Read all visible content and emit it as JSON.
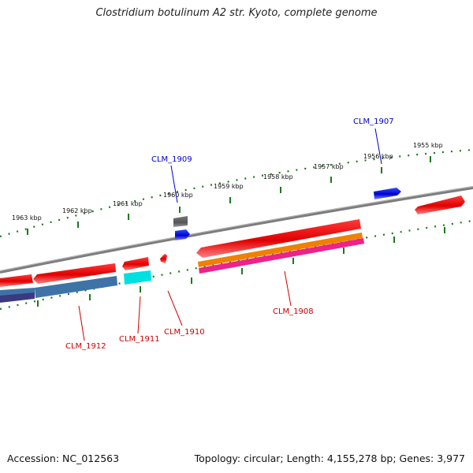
{
  "title": "Clostridium botulinum A2 str. Kyoto, complete genome",
  "footer": {
    "accession": "Accession: NC_012563",
    "summary": "Topology: circular; Length: 4,155,278 bp; Genes: 3,977"
  },
  "ticks": [
    "1963 kbp",
    "1962 kbp",
    "1961 kbp",
    "1960 kbp",
    "1959 kbp",
    "1958 kbp",
    "1957 kbp",
    "1956 kbp",
    "1955 kbp"
  ],
  "labels": {
    "clm1907": "CLM_1907",
    "clm1908": "CLM_1908",
    "clm1909": "CLM_1909",
    "clm1910": "CLM_1910",
    "clm1911": "CLM_1911",
    "clm1912": "CLM_1912"
  },
  "colors": {
    "forward": "#e00000",
    "reverse": "#0000cc",
    "backbone": "#808080",
    "tick": "#1a7a1a",
    "feature_grey": "#5a5a5a",
    "feature_cyan": "#00e5e5",
    "feature_steelblue": "#3e73a8",
    "feature_navy": "#3a3a80",
    "feature_orange": "#f08000",
    "feature_pink": "#ee2288"
  }
}
